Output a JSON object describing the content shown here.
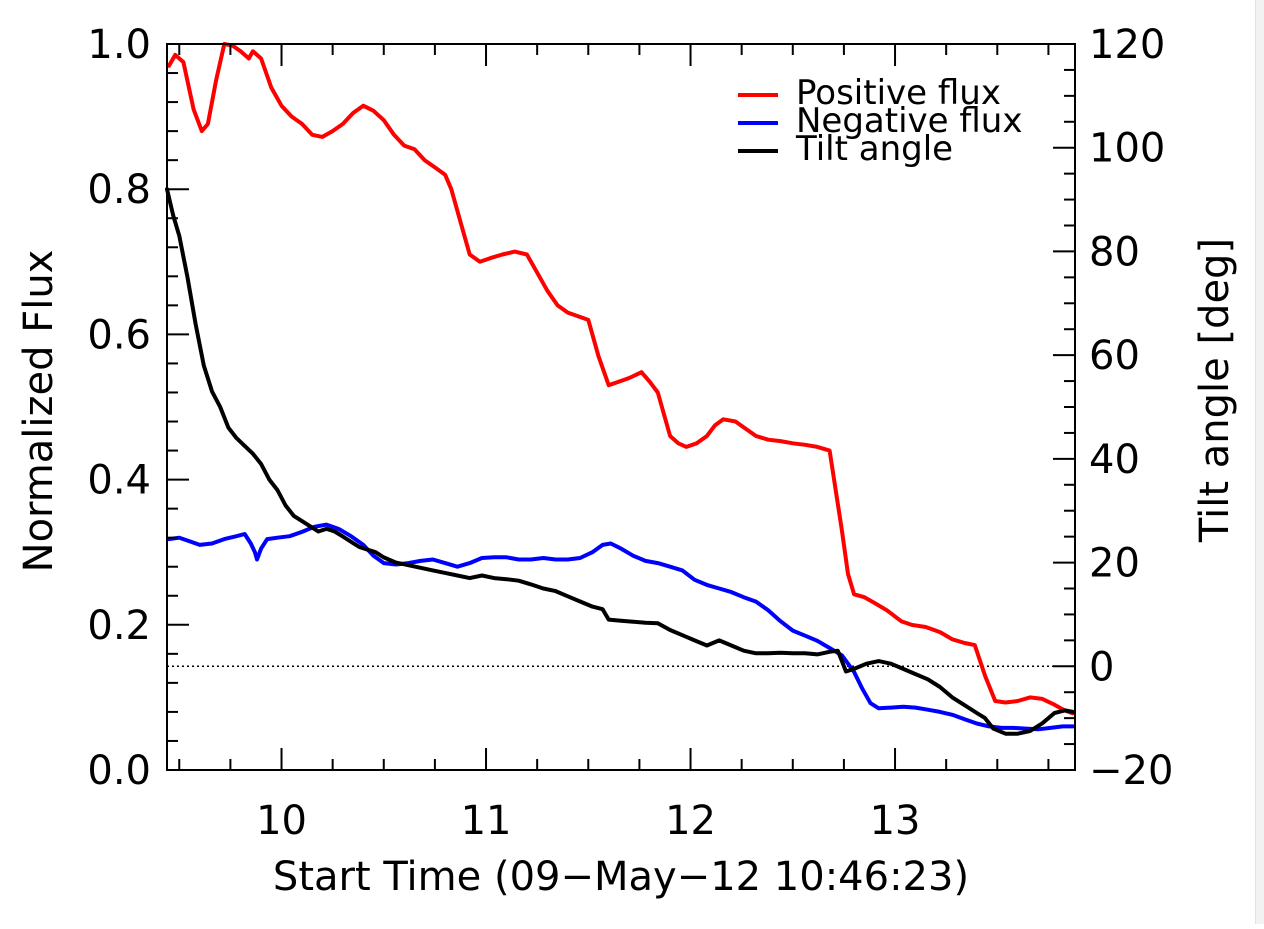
{
  "chart_data": {
    "type": "line",
    "x_axis": {
      "label": "Start Time (09−May−12 10:46:23)",
      "range": [
        9.44,
        13.88
      ],
      "major_ticks": [
        10,
        11,
        12,
        13
      ],
      "tick_labels": [
        "10",
        "11",
        "12",
        "13"
      ]
    },
    "y_axis_left": {
      "label": "Normalized Flux",
      "range": [
        0.0,
        1.0
      ],
      "major_ticks": [
        0.0,
        0.2,
        0.4,
        0.6,
        0.8,
        1.0
      ],
      "tick_labels": [
        "0.0",
        "0.2",
        "0.4",
        "0.6",
        "0.8",
        "1.0"
      ]
    },
    "y_axis_right": {
      "label": "Tilt angle [deg]",
      "range": [
        -20,
        120
      ],
      "major_ticks": [
        -20,
        0,
        20,
        40,
        60,
        80,
        100,
        120
      ],
      "tick_labels": [
        "−20",
        "0",
        "20",
        "40",
        "60",
        "80",
        "100",
        "120"
      ]
    },
    "reference_line": {
      "axis": "right",
      "value": 0,
      "style": "dotted"
    },
    "legend": {
      "position": "top-right",
      "entries": [
        {
          "label": "Positive flux",
          "color": "#ff0000"
        },
        {
          "label": "Negative flux",
          "color": "#0000ff"
        },
        {
          "label": "Tilt angle",
          "color": "#000000"
        }
      ]
    },
    "series": [
      {
        "name": "Positive flux",
        "axis": "left",
        "color": "#ff0000",
        "points": [
          [
            9.45,
            0.97
          ],
          [
            9.48,
            0.985
          ],
          [
            9.52,
            0.975
          ],
          [
            9.57,
            0.91
          ],
          [
            9.61,
            0.88
          ],
          [
            9.64,
            0.89
          ],
          [
            9.68,
            0.95
          ],
          [
            9.72,
            1.0
          ],
          [
            9.76,
            0.998
          ],
          [
            9.8,
            0.99
          ],
          [
            9.84,
            0.98
          ],
          [
            9.86,
            0.99
          ],
          [
            9.9,
            0.98
          ],
          [
            9.95,
            0.94
          ],
          [
            10.0,
            0.915
          ],
          [
            10.05,
            0.9
          ],
          [
            10.1,
            0.89
          ],
          [
            10.15,
            0.875
          ],
          [
            10.2,
            0.872
          ],
          [
            10.25,
            0.88
          ],
          [
            10.3,
            0.89
          ],
          [
            10.35,
            0.905
          ],
          [
            10.4,
            0.915
          ],
          [
            10.45,
            0.908
          ],
          [
            10.5,
            0.895
          ],
          [
            10.55,
            0.875
          ],
          [
            10.6,
            0.86
          ],
          [
            10.65,
            0.855
          ],
          [
            10.7,
            0.84
          ],
          [
            10.75,
            0.83
          ],
          [
            10.8,
            0.82
          ],
          [
            10.83,
            0.8
          ],
          [
            10.88,
            0.75
          ],
          [
            10.92,
            0.71
          ],
          [
            10.97,
            0.7
          ],
          [
            11.02,
            0.705
          ],
          [
            11.08,
            0.71
          ],
          [
            11.14,
            0.714
          ],
          [
            11.2,
            0.71
          ],
          [
            11.25,
            0.685
          ],
          [
            11.3,
            0.66
          ],
          [
            11.35,
            0.64
          ],
          [
            11.4,
            0.63
          ],
          [
            11.45,
            0.625
          ],
          [
            11.5,
            0.62
          ],
          [
            11.55,
            0.57
          ],
          [
            11.6,
            0.53
          ],
          [
            11.65,
            0.535
          ],
          [
            11.7,
            0.54
          ],
          [
            11.76,
            0.548
          ],
          [
            11.8,
            0.535
          ],
          [
            11.84,
            0.52
          ],
          [
            11.9,
            0.46
          ],
          [
            11.94,
            0.45
          ],
          [
            11.98,
            0.445
          ],
          [
            12.03,
            0.45
          ],
          [
            12.08,
            0.46
          ],
          [
            12.12,
            0.475
          ],
          [
            12.16,
            0.483
          ],
          [
            12.22,
            0.48
          ],
          [
            12.27,
            0.47
          ],
          [
            12.32,
            0.46
          ],
          [
            12.38,
            0.455
          ],
          [
            12.44,
            0.453
          ],
          [
            12.5,
            0.45
          ],
          [
            12.56,
            0.448
          ],
          [
            12.62,
            0.445
          ],
          [
            12.68,
            0.44
          ],
          [
            12.74,
            0.33
          ],
          [
            12.77,
            0.27
          ],
          [
            12.8,
            0.242
          ],
          [
            12.85,
            0.238
          ],
          [
            12.9,
            0.23
          ],
          [
            12.96,
            0.22
          ],
          [
            13.03,
            0.205
          ],
          [
            13.08,
            0.2
          ],
          [
            13.15,
            0.197
          ],
          [
            13.22,
            0.19
          ],
          [
            13.28,
            0.18
          ],
          [
            13.34,
            0.175
          ],
          [
            13.39,
            0.172
          ],
          [
            13.44,
            0.13
          ],
          [
            13.49,
            0.095
          ],
          [
            13.54,
            0.093
          ],
          [
            13.6,
            0.095
          ],
          [
            13.66,
            0.1
          ],
          [
            13.72,
            0.098
          ],
          [
            13.78,
            0.09
          ],
          [
            13.83,
            0.082
          ],
          [
            13.87,
            0.078
          ]
        ]
      },
      {
        "name": "Negative flux",
        "axis": "left",
        "color": "#0000ff",
        "points": [
          [
            9.45,
            0.318
          ],
          [
            9.5,
            0.32
          ],
          [
            9.55,
            0.315
          ],
          [
            9.6,
            0.31
          ],
          [
            9.66,
            0.312
          ],
          [
            9.72,
            0.318
          ],
          [
            9.78,
            0.322
          ],
          [
            9.82,
            0.325
          ],
          [
            9.85,
            0.312
          ],
          [
            9.87,
            0.3
          ],
          [
            9.88,
            0.29
          ],
          [
            9.9,
            0.305
          ],
          [
            9.93,
            0.318
          ],
          [
            9.98,
            0.32
          ],
          [
            10.04,
            0.322
          ],
          [
            10.1,
            0.328
          ],
          [
            10.16,
            0.335
          ],
          [
            10.22,
            0.338
          ],
          [
            10.28,
            0.332
          ],
          [
            10.34,
            0.322
          ],
          [
            10.4,
            0.31
          ],
          [
            10.45,
            0.295
          ],
          [
            10.5,
            0.285
          ],
          [
            10.56,
            0.283
          ],
          [
            10.62,
            0.285
          ],
          [
            10.68,
            0.288
          ],
          [
            10.74,
            0.29
          ],
          [
            10.8,
            0.285
          ],
          [
            10.86,
            0.28
          ],
          [
            10.92,
            0.285
          ],
          [
            10.98,
            0.292
          ],
          [
            11.04,
            0.293
          ],
          [
            11.1,
            0.293
          ],
          [
            11.16,
            0.29
          ],
          [
            11.22,
            0.29
          ],
          [
            11.28,
            0.292
          ],
          [
            11.34,
            0.29
          ],
          [
            11.4,
            0.29
          ],
          [
            11.46,
            0.292
          ],
          [
            11.52,
            0.3
          ],
          [
            11.57,
            0.31
          ],
          [
            11.61,
            0.312
          ],
          [
            11.66,
            0.305
          ],
          [
            11.72,
            0.295
          ],
          [
            11.78,
            0.288
          ],
          [
            11.84,
            0.285
          ],
          [
            11.9,
            0.28
          ],
          [
            11.96,
            0.275
          ],
          [
            12.02,
            0.262
          ],
          [
            12.08,
            0.255
          ],
          [
            12.14,
            0.25
          ],
          [
            12.2,
            0.245
          ],
          [
            12.26,
            0.238
          ],
          [
            12.32,
            0.232
          ],
          [
            12.38,
            0.22
          ],
          [
            12.44,
            0.205
          ],
          [
            12.5,
            0.192
          ],
          [
            12.56,
            0.185
          ],
          [
            12.62,
            0.178
          ],
          [
            12.68,
            0.168
          ],
          [
            12.74,
            0.158
          ],
          [
            12.8,
            0.135
          ],
          [
            12.84,
            0.112
          ],
          [
            12.88,
            0.092
          ],
          [
            12.92,
            0.085
          ],
          [
            12.98,
            0.086
          ],
          [
            13.04,
            0.087
          ],
          [
            13.1,
            0.086
          ],
          [
            13.16,
            0.083
          ],
          [
            13.22,
            0.08
          ],
          [
            13.28,
            0.076
          ],
          [
            13.34,
            0.07
          ],
          [
            13.4,
            0.064
          ],
          [
            13.46,
            0.06
          ],
          [
            13.52,
            0.058
          ],
          [
            13.58,
            0.058
          ],
          [
            13.64,
            0.057
          ],
          [
            13.7,
            0.056
          ],
          [
            13.76,
            0.058
          ],
          [
            13.82,
            0.06
          ],
          [
            13.87,
            0.06
          ]
        ]
      },
      {
        "name": "Tilt angle",
        "axis": "right",
        "color": "#000000",
        "points": [
          [
            9.44,
            92
          ],
          [
            9.47,
            87
          ],
          [
            9.5,
            83
          ],
          [
            9.54,
            75
          ],
          [
            9.58,
            66
          ],
          [
            9.62,
            58
          ],
          [
            9.66,
            53
          ],
          [
            9.7,
            50
          ],
          [
            9.74,
            46
          ],
          [
            9.78,
            44
          ],
          [
            9.82,
            42.5
          ],
          [
            9.86,
            41
          ],
          [
            9.9,
            39
          ],
          [
            9.94,
            36
          ],
          [
            9.98,
            34
          ],
          [
            10.02,
            31
          ],
          [
            10.06,
            29
          ],
          [
            10.1,
            28
          ],
          [
            10.14,
            27
          ],
          [
            10.18,
            26
          ],
          [
            10.22,
            26.5
          ],
          [
            10.26,
            26
          ],
          [
            10.3,
            25
          ],
          [
            10.34,
            24
          ],
          [
            10.38,
            23
          ],
          [
            10.42,
            22.5
          ],
          [
            10.46,
            22
          ],
          [
            10.5,
            21
          ],
          [
            10.56,
            20
          ],
          [
            10.62,
            19.5
          ],
          [
            10.68,
            19
          ],
          [
            10.74,
            18.5
          ],
          [
            10.8,
            18
          ],
          [
            10.86,
            17.5
          ],
          [
            10.92,
            17
          ],
          [
            10.98,
            17.5
          ],
          [
            11.04,
            17
          ],
          [
            11.1,
            16.8
          ],
          [
            11.16,
            16.5
          ],
          [
            11.22,
            15.8
          ],
          [
            11.28,
            15
          ],
          [
            11.34,
            14.5
          ],
          [
            11.4,
            13.5
          ],
          [
            11.46,
            12.5
          ],
          [
            11.52,
            11.5
          ],
          [
            11.57,
            11
          ],
          [
            11.6,
            9
          ],
          [
            11.66,
            8.8
          ],
          [
            11.72,
            8.6
          ],
          [
            11.78,
            8.4
          ],
          [
            11.84,
            8.3
          ],
          [
            11.9,
            7
          ],
          [
            11.96,
            6
          ],
          [
            12.02,
            5
          ],
          [
            12.08,
            4
          ],
          [
            12.14,
            5
          ],
          [
            12.2,
            4
          ],
          [
            12.26,
            3
          ],
          [
            12.32,
            2.5
          ],
          [
            12.38,
            2.5
          ],
          [
            12.44,
            2.6
          ],
          [
            12.5,
            2.5
          ],
          [
            12.56,
            2.5
          ],
          [
            12.62,
            2.3
          ],
          [
            12.68,
            2.8
          ],
          [
            12.72,
            3
          ],
          [
            12.76,
            -1
          ],
          [
            12.8,
            -0.5
          ],
          [
            12.86,
            0.5
          ],
          [
            12.92,
            1
          ],
          [
            12.98,
            0.5
          ],
          [
            13.04,
            -0.5
          ],
          [
            13.1,
            -1.5
          ],
          [
            13.16,
            -2.5
          ],
          [
            13.22,
            -4
          ],
          [
            13.28,
            -6
          ],
          [
            13.34,
            -7.5
          ],
          [
            13.4,
            -9
          ],
          [
            13.44,
            -10
          ],
          [
            13.48,
            -12
          ],
          [
            13.54,
            -13
          ],
          [
            13.6,
            -13
          ],
          [
            13.66,
            -12.5
          ],
          [
            13.72,
            -11
          ],
          [
            13.78,
            -9
          ],
          [
            13.83,
            -8.5
          ],
          [
            13.87,
            -8.8
          ]
        ]
      }
    ]
  }
}
